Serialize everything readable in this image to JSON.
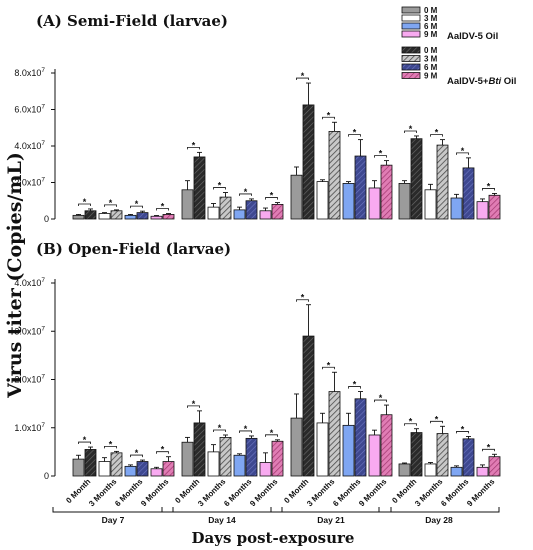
{
  "figure": {
    "ylabel": "Virus titer (Copies/mL)",
    "xlabel": "Days post-exposure",
    "star_symbol": "*"
  },
  "legend": {
    "group1_title": "AalDV-5 Oil",
    "group2_title": "AalDV-5+Bti Oil",
    "group2_title_prefix": "AalDV-5+",
    "group2_title_italic": "Bti",
    "group2_title_suffix": " Oil",
    "months": [
      "0 M",
      "3 M",
      "6 M",
      "9 M"
    ]
  },
  "colors": {
    "oil": [
      "#9b9b9b",
      "#ffffff",
      "#7fa6f2",
      "#f8aaf0"
    ],
    "bti": [
      "#2a2a2a",
      "#8c8c8c",
      "#404a96",
      "#c7528c"
    ]
  },
  "x_categories": [
    "0 Month",
    "3 Months",
    "6 Months",
    "9 Months"
  ],
  "x_groups": [
    "Day 7",
    "Day 14",
    "Day 21",
    "Day 28"
  ],
  "chart_data": [
    {
      "type": "bar",
      "title": "(A) Semi-Field (larvae)",
      "ylim": [
        0,
        80000000
      ],
      "yticks": [
        0,
        20000000,
        40000000,
        60000000,
        80000000
      ],
      "ytick_labels": [
        "0",
        "2.0x10",
        "4.0x10",
        "6.0x10",
        "8.0x10"
      ],
      "ytick_exp": "7",
      "groups": [
        "Day 7",
        "Day 14",
        "Day 21",
        "Day 28"
      ],
      "categories": [
        "0 Month",
        "3 Months",
        "6 Months",
        "9 Months"
      ],
      "series": [
        {
          "name": "AalDV-5 Oil",
          "values": [
            [
              2000000,
              3000000,
              2000000,
              1500000
            ],
            [
              16000000,
              6500000,
              5000000,
              4500000
            ],
            [
              24000000,
              20500000,
              19500000,
              17000000
            ],
            [
              19500000,
              16000000,
              11500000,
              9500000
            ]
          ],
          "errors": [
            [
              500000,
              500000,
              500000,
              400000
            ],
            [
              5000000,
              2000000,
              1500000,
              1500000
            ],
            [
              4500000,
              1000000,
              1000000,
              4000000
            ],
            [
              1500000,
              3000000,
              2000000,
              1500000
            ]
          ]
        },
        {
          "name": "AalDV-5+Bti Oil",
          "values": [
            [
              4500000,
              4500000,
              3500000,
              2500000
            ],
            [
              34000000,
              12000000,
              10000000,
              8000000
            ],
            [
              62500000,
              48000000,
              34500000,
              29500000
            ],
            [
              44000000,
              40500000,
              28000000,
              13000000
            ]
          ],
          "errors": [
            [
              1000000,
              500000,
              800000,
              500000
            ],
            [
              2500000,
              2500000,
              1000000,
              1000000
            ],
            [
              12000000,
              5000000,
              9000000,
              2500000
            ],
            [
              1500000,
              3000000,
              5500000,
              1000000
            ]
          ]
        }
      ]
    },
    {
      "type": "bar",
      "title": "(B) Open-Field (larvae)",
      "ylim": [
        0,
        40000000
      ],
      "yticks": [
        0,
        10000000,
        20000000,
        30000000,
        40000000
      ],
      "ytick_labels": [
        "0",
        "1.0x10",
        "2.0x10",
        "3.0x10",
        "4.0x10"
      ],
      "ytick_exp": "7",
      "groups": [
        "Day 7",
        "Day 14",
        "Day 21",
        "Day 28"
      ],
      "categories": [
        "0 Month",
        "3 Months",
        "6 Months",
        "9 Months"
      ],
      "series": [
        {
          "name": "AalDV-5 Oil",
          "values": [
            [
              3500000,
              3000000,
              2000000,
              1500000
            ],
            [
              7000000,
              5000000,
              4300000,
              2800000
            ],
            [
              12000000,
              11000000,
              10500000,
              8500000
            ],
            [
              2500000,
              2500000,
              1800000,
              1800000
            ]
          ],
          "errors": [
            [
              800000,
              800000,
              300000,
              300000
            ],
            [
              1000000,
              1500000,
              300000,
              2000000
            ],
            [
              5000000,
              2000000,
              2500000,
              1000000
            ],
            [
              200000,
              300000,
              300000,
              500000
            ]
          ]
        },
        {
          "name": "AalDV-5+Bti Oil",
          "values": [
            [
              5500000,
              4800000,
              3000000,
              3000000
            ],
            [
              11000000,
              8000000,
              7800000,
              7200000
            ],
            [
              29000000,
              17500000,
              16000000,
              12700000
            ],
            [
              9000000,
              8800000,
              7700000,
              4000000
            ]
          ],
          "errors": [
            [
              500000,
              300000,
              300000,
              1000000
            ],
            [
              2500000,
              500000,
              500000,
              300000
            ],
            [
              6500000,
              4000000,
              1500000,
              2000000
            ],
            [
              800000,
              1500000,
              500000,
              500000
            ]
          ]
        }
      ]
    }
  ]
}
